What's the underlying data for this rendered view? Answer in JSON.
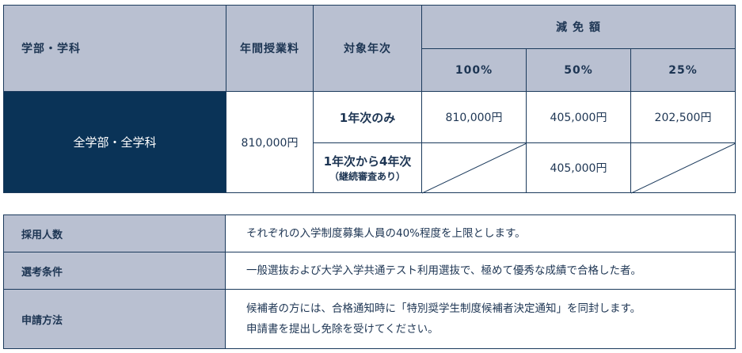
{
  "main_table": {
    "headers": {
      "department": "学部・学科",
      "tuition": "年間授業料",
      "target_year": "対象年次",
      "reduction": "減 免 額",
      "p100": "100%",
      "p50": "50%",
      "p25": "25%"
    },
    "department": "全学部・全学科",
    "tuition": "810,000円",
    "rows": [
      {
        "target": "1年次のみ",
        "p100": "810,000円",
        "p50": "405,000円",
        "p25": "202,500円"
      },
      {
        "target": "1年次から4年次",
        "note": "（継続審査あり）",
        "p100": "",
        "p50": "405,000円",
        "p25": ""
      }
    ]
  },
  "info_table": [
    {
      "label": "採用人数",
      "text": "それぞれの入学制度募集人員の40%程度を上限とします。"
    },
    {
      "label": "選考条件",
      "text": "一般選抜および大学入学共通テスト利用選抜で、極めて優秀な成績で合格した者。"
    },
    {
      "label": "申請方法",
      "text": "候補者の方には、合格通知時に「特別奨学生制度候補者決定通知」を同封します。",
      "text2": "申請書を提出し免除を受けてください。"
    }
  ]
}
